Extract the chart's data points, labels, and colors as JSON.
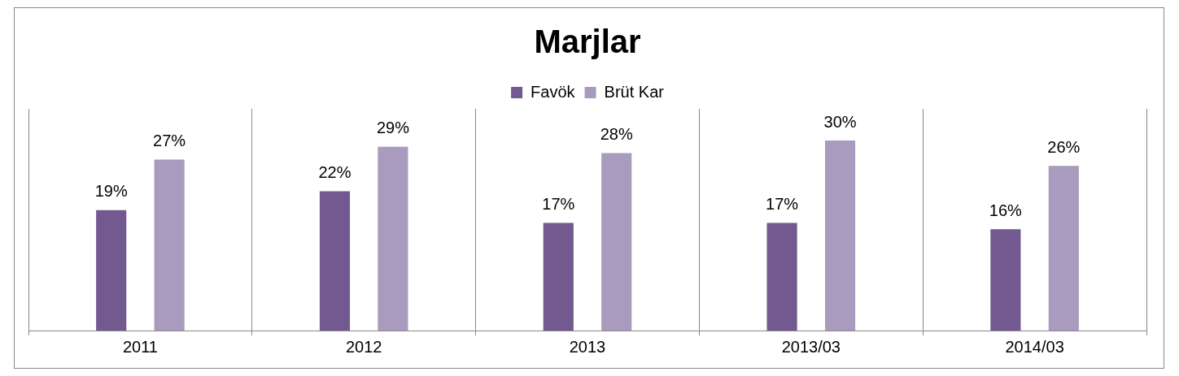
{
  "chart_data": {
    "type": "bar",
    "title": "Marjlar",
    "categories": [
      "2011",
      "2012",
      "2013",
      "2013/03",
      "2014/03"
    ],
    "series": [
      {
        "name": "Favök",
        "color": "#725990",
        "values": [
          19,
          22,
          17,
          17,
          16
        ],
        "value_labels": [
          "19%",
          "22%",
          "17%",
          "17%",
          "16%"
        ]
      },
      {
        "name": "Brüt Kar",
        "color": "#a99bbd",
        "values": [
          27,
          29,
          28,
          30,
          26
        ],
        "value_labels": [
          "27%",
          "29%",
          "28%",
          "30%",
          "26%"
        ]
      }
    ],
    "legend": "top",
    "grid": "x"
  }
}
